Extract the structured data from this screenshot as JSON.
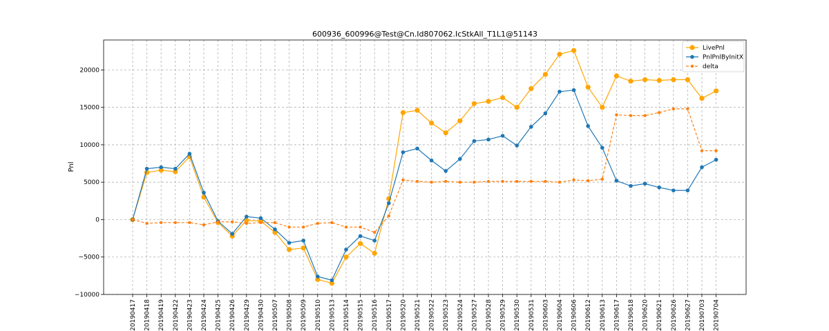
{
  "chart_data": {
    "type": "line",
    "title": "600936_600996@Test@Cn.Id807062.IcStkAll_T1L1@51143",
    "xlabel": "",
    "ylabel": "Pnl",
    "ylim": [
      -10000,
      24000
    ],
    "yticks": [
      -10000,
      -5000,
      0,
      5000,
      10000,
      15000,
      20000
    ],
    "ytick_labels": [
      "−10000",
      "−5000",
      "0",
      "5000",
      "10000",
      "15000",
      "20000"
    ],
    "grid": true,
    "legend_position": "top-right",
    "categories": [
      "20190417",
      "20190418",
      "20190419",
      "20190422",
      "20190423",
      "20190424",
      "20190425",
      "20190426",
      "20190429",
      "20190430",
      "20190507",
      "20190508",
      "20190509",
      "20190510",
      "20190513",
      "20190514",
      "20190515",
      "20190516",
      "20190517",
      "20190520",
      "20190521",
      "20190522",
      "20190523",
      "20190524",
      "20190527",
      "20190528",
      "20190529",
      "20190530",
      "20190531",
      "20190603",
      "20190604",
      "20190606",
      "20190612",
      "20190613",
      "20190617",
      "20190618",
      "20190620",
      "20190621",
      "20190626",
      "20190627",
      "20190703",
      "20190704"
    ],
    "series": [
      {
        "name": "LivePnl",
        "color": "#ffa500",
        "style": "solid",
        "values": [
          0,
          6300,
          6600,
          6400,
          8400,
          3000,
          -400,
          -2200,
          -100,
          -200,
          -1700,
          -4000,
          -3800,
          -8000,
          -8500,
          -5000,
          -3200,
          -4500,
          2800,
          14300,
          14600,
          12900,
          11600,
          13200,
          15500,
          15800,
          16300,
          15000,
          17500,
          19400,
          22100,
          22600,
          17700,
          15000,
          19200,
          18500,
          18700,
          18600,
          18700,
          18700,
          16200,
          17200
        ]
      },
      {
        "name": "PnlPnlByInitX",
        "color": "#1f77b4",
        "style": "solid",
        "values": [
          0,
          6800,
          7000,
          6800,
          8800,
          3600,
          -200,
          -1900,
          400,
          200,
          -1300,
          -3100,
          -2800,
          -7600,
          -8100,
          -4000,
          -2200,
          -2800,
          2200,
          9000,
          9500,
          7900,
          6500,
          8100,
          10500,
          10700,
          11200,
          9900,
          12400,
          14200,
          17100,
          17300,
          12500,
          9600,
          5200,
          4500,
          4800,
          4300,
          3900,
          3900,
          7000,
          8000
        ]
      },
      {
        "name": "delta",
        "color": "#ff7f0e",
        "style": "dashed",
        "values": [
          0,
          -500,
          -400,
          -400,
          -400,
          -700,
          -300,
          -300,
          -500,
          -400,
          -400,
          -1000,
          -1000,
          -500,
          -400,
          -1000,
          -1000,
          -1700,
          500,
          5300,
          5100,
          5000,
          5100,
          5000,
          5000,
          5100,
          5100,
          5100,
          5100,
          5100,
          5000,
          5300,
          5200,
          5400,
          14000,
          13900,
          13900,
          14300,
          14800,
          14800,
          9200,
          9200
        ]
      }
    ]
  }
}
